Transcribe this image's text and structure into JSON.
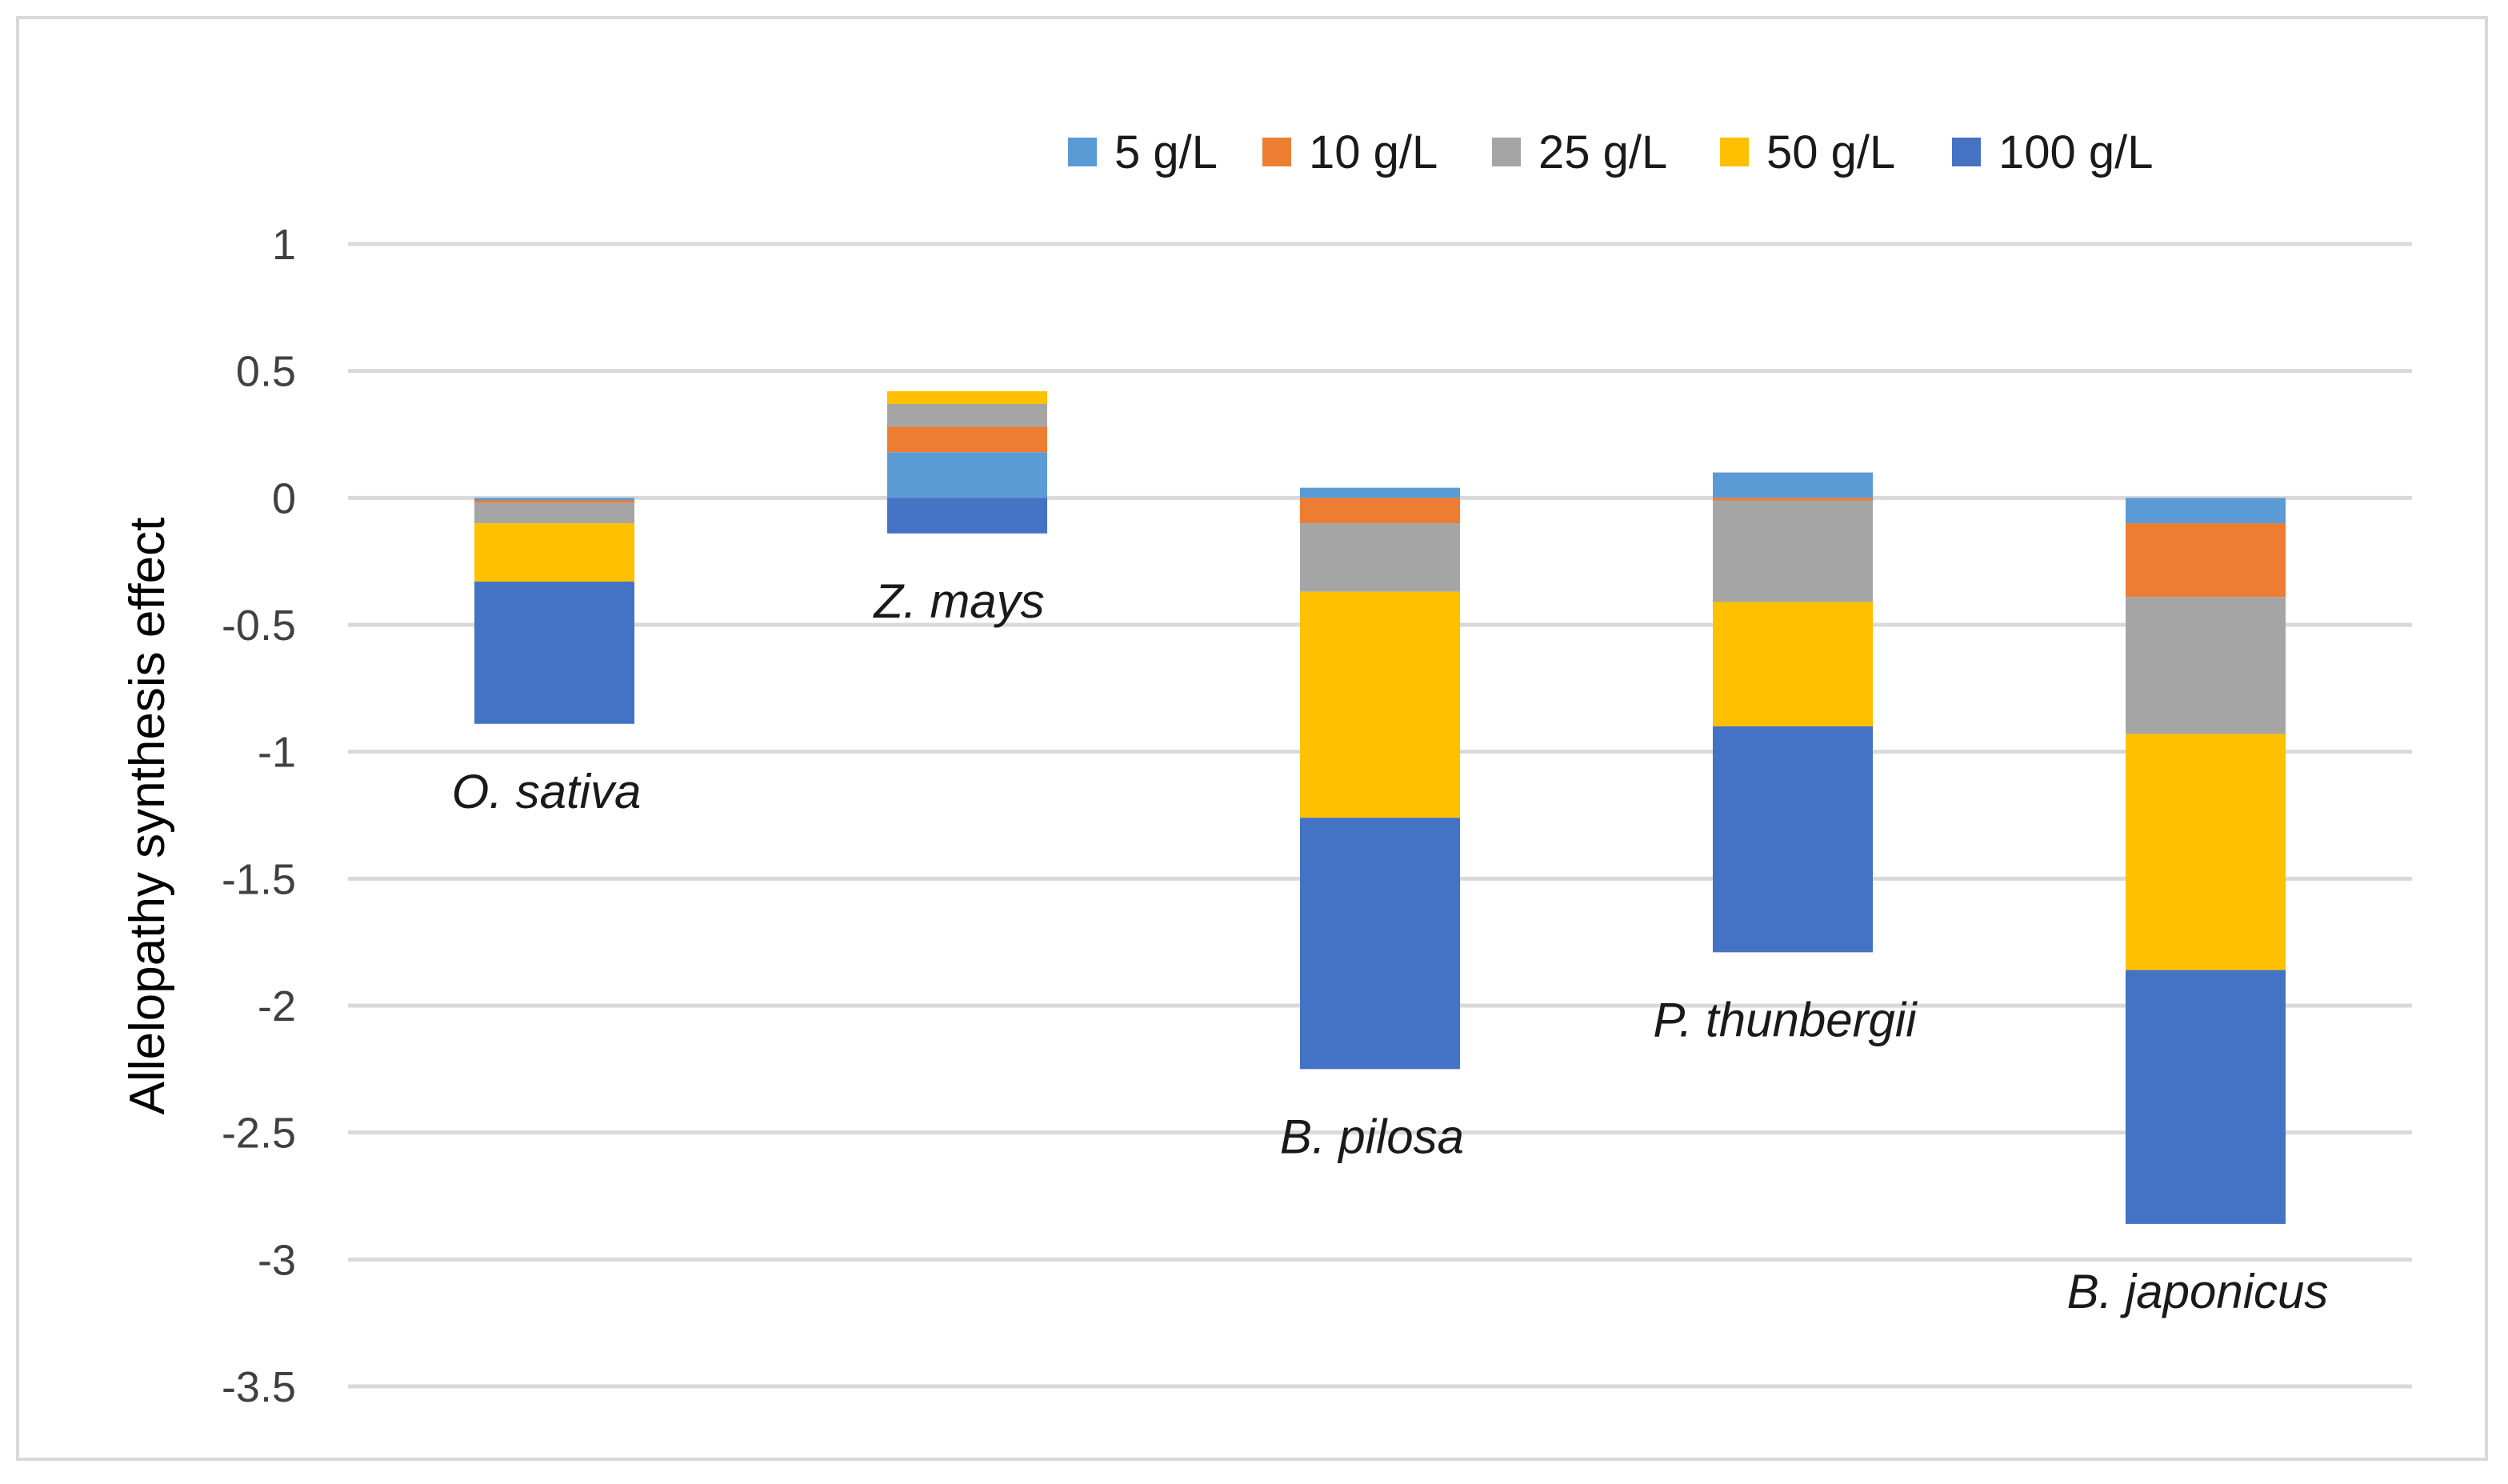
{
  "chart_data": {
    "type": "bar",
    "stacked": true,
    "title": "",
    "xlabel": "",
    "ylabel": "Allelopathy synthesis effect",
    "ylim": [
      -3.5,
      1
    ],
    "yticks": [
      1,
      0.5,
      0,
      -0.5,
      -1,
      -1.5,
      -2,
      -2.5,
      -3,
      -3.5
    ],
    "grid": true,
    "legend_position": "top-right",
    "categories": [
      "O. sativa",
      "Z. mays",
      "B. pilosa",
      "P. thunbergii",
      "B. japonicus"
    ],
    "series": [
      {
        "name": "5 g/L",
        "color": "#5B9BD5",
        "values": [
          -0.01,
          0.18,
          0.04,
          0.1,
          -0.1
        ]
      },
      {
        "name": "10 g/L",
        "color": "#ED7D31",
        "values": [
          -0.01,
          0.1,
          -0.1,
          -0.01,
          -0.29
        ]
      },
      {
        "name": "25 g/L",
        "color": "#A5A5A5",
        "values": [
          -0.08,
          0.09,
          -0.27,
          -0.4,
          -0.54
        ]
      },
      {
        "name": "50 g/L",
        "color": "#FFC000",
        "values": [
          -0.23,
          0.05,
          -0.89,
          -0.49,
          -0.93
        ]
      },
      {
        "name": "100 g/L",
        "color": "#4472C4",
        "values": [
          -0.56,
          -0.14,
          -0.99,
          -0.89,
          -1.0
        ]
      }
    ]
  }
}
